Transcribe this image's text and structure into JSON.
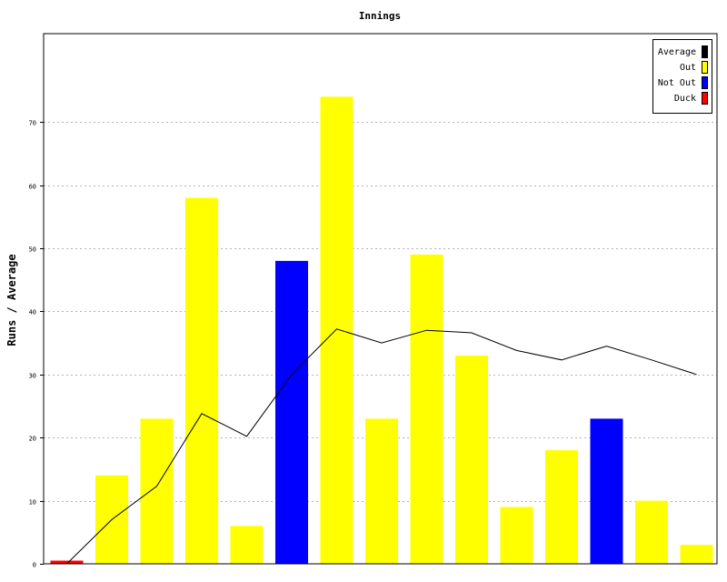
{
  "chart_data": {
    "type": "bar",
    "title": "Innings",
    "xlabel": "",
    "ylabel": "Runs / Average",
    "ylim": [
      0,
      84
    ],
    "yticks": [
      0,
      10,
      20,
      30,
      40,
      50,
      60,
      70
    ],
    "grid": true,
    "legend_position": "top-right",
    "legend": [
      {
        "label": "Average",
        "color": "#000000"
      },
      {
        "label": "Out",
        "color": "#ffff00"
      },
      {
        "label": "Not Out",
        "color": "#0000ff"
      },
      {
        "label": "Duck",
        "color": "#ff0000"
      }
    ],
    "bars": [
      {
        "value": 0.5,
        "status": "Duck"
      },
      {
        "value": 14,
        "status": "Out"
      },
      {
        "value": 23,
        "status": "Out"
      },
      {
        "value": 58,
        "status": "Out"
      },
      {
        "value": 6,
        "status": "Out"
      },
      {
        "value": 48,
        "status": "Not Out"
      },
      {
        "value": 74,
        "status": "Out"
      },
      {
        "value": 23,
        "status": "Out"
      },
      {
        "value": 49,
        "status": "Out"
      },
      {
        "value": 33,
        "status": "Out"
      },
      {
        "value": 9,
        "status": "Out"
      },
      {
        "value": 18,
        "status": "Out"
      },
      {
        "value": 23,
        "status": "Not Out"
      },
      {
        "value": 10,
        "status": "Out"
      },
      {
        "value": 3,
        "status": "Out"
      }
    ],
    "average": [
      0,
      7,
      12.3,
      23.8,
      20.2,
      30,
      37.2,
      35.0,
      37.0,
      36.6,
      33.8,
      32.3,
      34.5,
      32.3,
      30.0
    ],
    "series_colors": {
      "Out": "#ffff00",
      "Not Out": "#0000ff",
      "Duck": "#ff0000",
      "Average": "#000000"
    }
  }
}
